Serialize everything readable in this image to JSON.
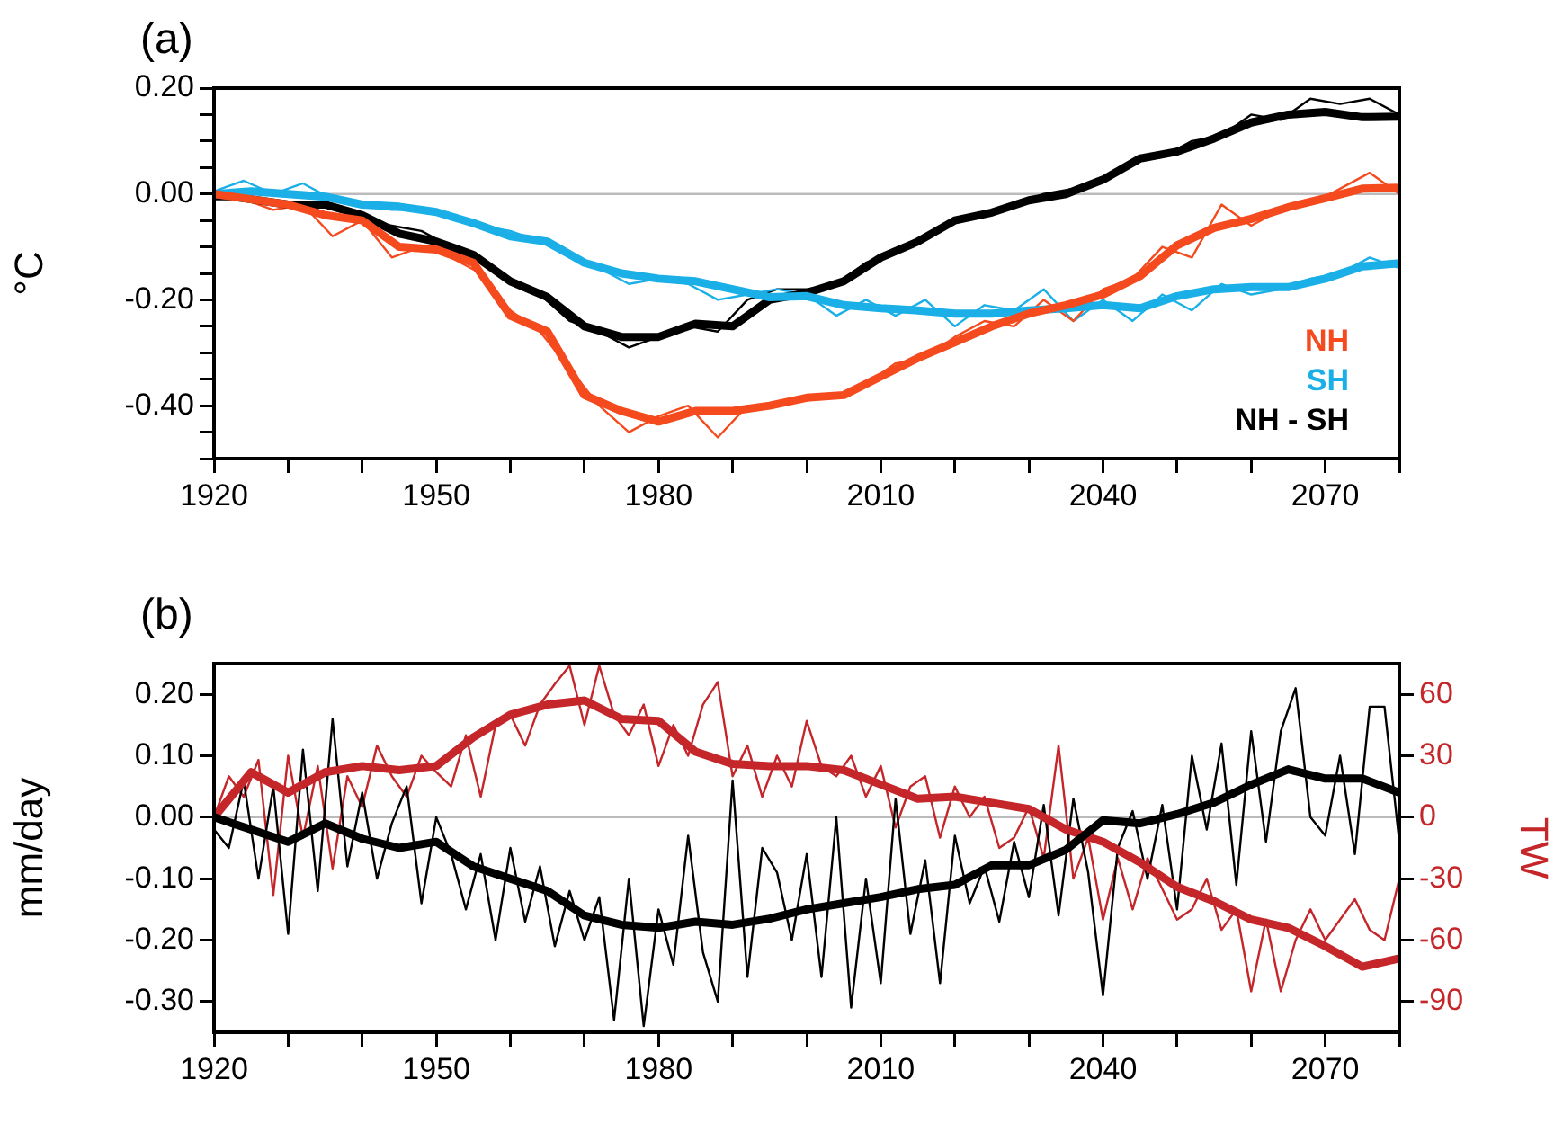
{
  "chart_data": [
    {
      "type": "line",
      "title": "(a)",
      "ylabel": "°C",
      "x": [
        1920,
        1925,
        1930,
        1935,
        1940,
        1945,
        1950,
        1955,
        1960,
        1965,
        1970,
        1975,
        1980,
        1985,
        1990,
        1995,
        2000,
        2005,
        2010,
        2015,
        2020,
        2025,
        2030,
        2035,
        2040,
        2045,
        2050,
        2055,
        2060,
        2065,
        2070,
        2075,
        2080
      ],
      "series": [
        {
          "name": "NH",
          "color": "#f44a1e",
          "values": [
            0,
            -0.01,
            -0.02,
            -0.04,
            -0.05,
            -0.1,
            -0.105,
            -0.13,
            -0.23,
            -0.26,
            -0.38,
            -0.41,
            -0.43,
            -0.41,
            -0.41,
            -0.4,
            -0.385,
            -0.38,
            -0.345,
            -0.31,
            -0.28,
            -0.25,
            -0.226,
            -0.21,
            -0.19,
            -0.155,
            -0.097,
            -0.064,
            -0.047,
            -0.025,
            -0.008,
            0.01,
            0.012
          ]
        },
        {
          "name": "SH",
          "color": "#1aafe6",
          "values": [
            0,
            0.005,
            0,
            -0.005,
            -0.02,
            -0.024,
            -0.034,
            -0.055,
            -0.08,
            -0.09,
            -0.13,
            -0.15,
            -0.16,
            -0.165,
            -0.18,
            -0.195,
            -0.193,
            -0.21,
            -0.216,
            -0.22,
            -0.226,
            -0.226,
            -0.22,
            -0.216,
            -0.21,
            -0.216,
            -0.193,
            -0.18,
            -0.176,
            -0.176,
            -0.16,
            -0.137,
            -0.131
          ]
        },
        {
          "name": "NH - SH",
          "color": "#000000",
          "values": [
            0,
            -0.01,
            -0.02,
            -0.02,
            -0.04,
            -0.075,
            -0.09,
            -0.115,
            -0.165,
            -0.195,
            -0.25,
            -0.27,
            -0.27,
            -0.245,
            -0.25,
            -0.2,
            -0.187,
            -0.165,
            -0.12,
            -0.09,
            -0.05,
            -0.035,
            -0.012,
            0,
            0.027,
            0.067,
            0.08,
            0.105,
            0.135,
            0.15,
            0.155,
            0.145,
            0.146
          ]
        },
        {
          "color": "#f44a1e",
          "x": [
            1920,
            1924,
            1928,
            1932,
            1936,
            1940,
            1944,
            1948,
            1952,
            1956,
            1960,
            1964,
            1968,
            1972,
            1976,
            1980,
            1984,
            1988,
            1992,
            1996,
            2000,
            2004,
            2008,
            2012,
            2016,
            2020,
            2024,
            2028,
            2032,
            2036,
            2040,
            2044,
            2048,
            2052,
            2056,
            2060,
            2064,
            2068,
            2072,
            2076,
            2080
          ],
          "values": [
            0,
            -0.01,
            -0.03,
            -0.02,
            -0.08,
            -0.05,
            -0.12,
            -0.1,
            -0.12,
            -0.15,
            -0.22,
            -0.26,
            -0.33,
            -0.4,
            -0.45,
            -0.42,
            -0.4,
            -0.46,
            -0.4,
            -0.4,
            -0.39,
            -0.38,
            -0.36,
            -0.32,
            -0.31,
            -0.27,
            -0.24,
            -0.25,
            -0.2,
            -0.24,
            -0.18,
            -0.16,
            -0.1,
            -0.12,
            -0.02,
            -0.06,
            -0.03,
            -0.02,
            0.01,
            0.04,
            0
          ]
        },
        {
          "color": "#1aafe6",
          "x": [
            1920,
            1924,
            1928,
            1932,
            1936,
            1940,
            1944,
            1948,
            1952,
            1956,
            1960,
            1964,
            1968,
            1972,
            1976,
            1980,
            1984,
            1988,
            1992,
            1996,
            2000,
            2004,
            2008,
            2012,
            2016,
            2020,
            2024,
            2028,
            2032,
            2036,
            2040,
            2044,
            2048,
            2052,
            2056,
            2060,
            2064,
            2068,
            2072,
            2076,
            2080
          ],
          "values": [
            0.005,
            0.025,
            0,
            0.02,
            -0.01,
            -0.02,
            -0.03,
            -0.03,
            -0.04,
            -0.06,
            -0.07,
            -0.09,
            -0.12,
            -0.14,
            -0.17,
            -0.16,
            -0.17,
            -0.2,
            -0.19,
            -0.18,
            -0.19,
            -0.23,
            -0.2,
            -0.23,
            -0.2,
            -0.25,
            -0.21,
            -0.22,
            -0.18,
            -0.24,
            -0.2,
            -0.24,
            -0.19,
            -0.22,
            -0.17,
            -0.19,
            -0.18,
            -0.16,
            -0.15,
            -0.12,
            -0.14
          ]
        },
        {
          "color": "#000000",
          "x": [
            1920,
            1924,
            1928,
            1932,
            1936,
            1940,
            1944,
            1948,
            1952,
            1956,
            1960,
            1964,
            1968,
            1972,
            1976,
            1980,
            1984,
            1988,
            1992,
            1996,
            2000,
            2004,
            2008,
            2012,
            2016,
            2020,
            2024,
            2028,
            2032,
            2036,
            2040,
            2044,
            2048,
            2052,
            2056,
            2060,
            2064,
            2068,
            2072,
            2076,
            2080
          ],
          "values": [
            -0.01,
            -0.01,
            -0.02,
            -0.02,
            -0.04,
            -0.05,
            -0.06,
            -0.07,
            -0.1,
            -0.12,
            -0.16,
            -0.19,
            -0.24,
            -0.26,
            -0.29,
            -0.27,
            -0.25,
            -0.26,
            -0.2,
            -0.18,
            -0.18,
            -0.17,
            -0.13,
            -0.11,
            -0.08,
            -0.05,
            -0.04,
            -0.02,
            0,
            0.01,
            0.03,
            0.06,
            0.07,
            0.1,
            0.11,
            0.15,
            0.14,
            0.18,
            0.17,
            0.18,
            0.15
          ]
        }
      ],
      "xlim": [
        1920,
        2080
      ],
      "xticks": [
        1920,
        {
          "value": 1930,
          "label": null
        },
        {
          "value": 1940,
          "label": null
        },
        1950,
        {
          "value": 1960,
          "label": null
        },
        {
          "value": 1970,
          "label": null
        },
        1980,
        {
          "value": 1990,
          "label": null
        },
        {
          "value": 2000,
          "label": null
        },
        2010,
        {
          "value": 2020,
          "label": null
        },
        {
          "value": 2030,
          "label": null
        },
        2040,
        {
          "value": 2050,
          "label": null
        },
        {
          "value": 2060,
          "label": null
        },
        2070,
        {
          "value": 2080,
          "label": null
        }
      ],
      "ylim": [
        -0.5,
        0.2
      ],
      "yticks": [
        {
          "value": -0.5,
          "label": null
        },
        {
          "value": -0.45,
          "label": null
        },
        {
          "value": -0.4,
          "label": "-0.40"
        },
        {
          "value": -0.35,
          "label": null
        },
        {
          "value": -0.3,
          "label": null
        },
        {
          "value": -0.25,
          "label": null
        },
        {
          "value": -0.2,
          "label": "-0.20"
        },
        {
          "value": -0.15,
          "label": null
        },
        {
          "value": -0.1,
          "label": null
        },
        {
          "value": -0.05,
          "label": null
        },
        {
          "value": 0,
          "label": "0.00"
        },
        {
          "value": 0.05,
          "label": null
        },
        {
          "value": 0.1,
          "label": null
        },
        {
          "value": 0.15,
          "label": null
        },
        {
          "value": 0.2,
          "label": "0.20"
        }
      ],
      "ref_lines": [
        {
          "axis": "y",
          "value": 0,
          "color": "#bbbbbb"
        }
      ],
      "grid": false,
      "legend": "bottom right"
    },
    {
      "type": "line",
      "title": "(b)",
      "ylabel": "mm/day",
      "y2label": "TW",
      "x": [
        1920,
        1925,
        1930,
        1935,
        1940,
        1945,
        1950,
        1955,
        1960,
        1965,
        1970,
        1975,
        1980,
        1985,
        1990,
        1995,
        2000,
        2005,
        2010,
        2015,
        2020,
        2025,
        2030,
        2035,
        2040,
        2045,
        2050,
        2055,
        2060,
        2065,
        2070,
        2075,
        2080
      ],
      "series": [
        {
          "color": "#000000",
          "x": [
            1920,
            1922,
            1924,
            1926,
            1928,
            1930,
            1932,
            1934,
            1936,
            1938,
            1940,
            1942,
            1944,
            1946,
            1948,
            1950,
            1952,
            1954,
            1956,
            1958,
            1960,
            1962,
            1964,
            1966,
            1968,
            1970,
            1972,
            1974,
            1976,
            1978,
            1980,
            1982,
            1984,
            1986,
            1988,
            1990,
            1992,
            1994,
            1996,
            1998,
            2000,
            2002,
            2004,
            2006,
            2008,
            2010,
            2012,
            2014,
            2016,
            2018,
            2020,
            2022,
            2024,
            2026,
            2028,
            2030,
            2032,
            2034,
            2036,
            2038,
            2040,
            2042,
            2044,
            2046,
            2048,
            2050,
            2052,
            2054,
            2056,
            2058,
            2060,
            2062,
            2064,
            2066,
            2068,
            2070,
            2072,
            2074,
            2076,
            2078,
            2080
          ],
          "values": [
            -0.02,
            -0.05,
            0.06,
            -0.1,
            0.05,
            -0.19,
            0.11,
            -0.12,
            0.16,
            -0.08,
            0.04,
            -0.1,
            -0.01,
            0.05,
            -0.14,
            0,
            -0.06,
            -0.15,
            -0.06,
            -0.2,
            -0.05,
            -0.17,
            -0.08,
            -0.21,
            -0.12,
            -0.2,
            -0.13,
            -0.33,
            -0.1,
            -0.34,
            -0.15,
            -0.24,
            -0.03,
            -0.22,
            -0.3,
            0.06,
            -0.26,
            -0.05,
            -0.09,
            -0.2,
            -0.06,
            -0.26,
            0,
            -0.31,
            -0.1,
            -0.27,
            0.03,
            -0.19,
            -0.07,
            -0.27,
            -0.03,
            -0.14,
            -0.08,
            -0.17,
            -0.04,
            -0.13,
            0.02,
            -0.16,
            0.03,
            -0.09,
            -0.29,
            -0.05,
            0.01,
            -0.1,
            0.02,
            -0.15,
            0.1,
            -0.02,
            0.12,
            -0.11,
            0.14,
            -0.04,
            0.14,
            0.21,
            0,
            -0.03,
            0.1,
            -0.06,
            0.18,
            0.18,
            -0.04
          ]
        },
        {
          "color": "#c4262a",
          "axis": "y2",
          "x": [
            1920,
            1922,
            1924,
            1926,
            1928,
            1930,
            1932,
            1934,
            1936,
            1938,
            1940,
            1942,
            1944,
            1946,
            1948,
            1950,
            1952,
            1954,
            1956,
            1958,
            1960,
            1962,
            1964,
            1966,
            1968,
            1970,
            1972,
            1974,
            1976,
            1978,
            1980,
            1982,
            1984,
            1986,
            1988,
            1990,
            1992,
            1994,
            1996,
            1998,
            2000,
            2002,
            2004,
            2006,
            2008,
            2010,
            2012,
            2014,
            2016,
            2018,
            2020,
            2022,
            2024,
            2026,
            2028,
            2030,
            2032,
            2034,
            2036,
            2038,
            2040,
            2042,
            2044,
            2046,
            2048,
            2050,
            2052,
            2054,
            2056,
            2058,
            2060,
            2062,
            2064,
            2066,
            2068,
            2070,
            2072,
            2074,
            2076,
            2078,
            2080
          ],
          "values": [
            0,
            20,
            10,
            28,
            -38,
            30,
            -10,
            25,
            -25,
            20,
            5,
            35,
            20,
            10,
            30,
            22,
            15,
            40,
            10,
            45,
            50,
            35,
            55,
            65,
            74,
            45,
            74,
            50,
            40,
            55,
            25,
            45,
            30,
            55,
            66,
            20,
            35,
            10,
            30,
            15,
            47,
            25,
            20,
            30,
            10,
            25,
            -5,
            15,
            20,
            -10,
            15,
            0,
            10,
            -15,
            -10,
            5,
            -20,
            35,
            -30,
            -10,
            -50,
            -20,
            -45,
            -20,
            -35,
            -50,
            -45,
            -30,
            -55,
            -45,
            -85,
            -50,
            -85,
            -60,
            -45,
            -60,
            -50,
            -40,
            -55,
            -60,
            -30
          ]
        },
        {
          "color": "#000000",
          "values": [
            0,
            -0.02,
            -0.04,
            -0.01,
            -0.035,
            -0.05,
            -0.04,
            -0.08,
            -0.1,
            -0.12,
            -0.16,
            -0.175,
            -0.18,
            -0.17,
            -0.175,
            -0.165,
            -0.15,
            -0.14,
            -0.13,
            -0.117,
            -0.11,
            -0.078,
            -0.078,
            -0.053,
            -0.005,
            -0.01,
            0.005,
            0.024,
            0.053,
            0.078,
            0.063,
            0.063,
            0.04
          ]
        },
        {
          "color": "#c4262a",
          "axis": "y2",
          "values": [
            0,
            22,
            12,
            22,
            25,
            23,
            25,
            39,
            50,
            55,
            57,
            48,
            47,
            32,
            26,
            25,
            25,
            23,
            16,
            9,
            10,
            7,
            4,
            -6,
            -12,
            -22,
            -34,
            -41,
            -50,
            -54,
            -63,
            -73,
            -69
          ]
        }
      ],
      "xlim": [
        1920,
        2080
      ],
      "xticks": [
        1920,
        {
          "value": 1930,
          "label": null
        },
        {
          "value": 1940,
          "label": null
        },
        1950,
        {
          "value": 1960,
          "label": null
        },
        {
          "value": 1970,
          "label": null
        },
        1980,
        {
          "value": 1990,
          "label": null
        },
        {
          "value": 2000,
          "label": null
        },
        2010,
        {
          "value": 2020,
          "label": null
        },
        {
          "value": 2030,
          "label": null
        },
        2040,
        {
          "value": 2050,
          "label": null
        },
        {
          "value": 2060,
          "label": null
        },
        2070,
        {
          "value": 2080,
          "label": null
        }
      ],
      "ylim": [
        -0.35,
        0.25
      ],
      "yticks": [
        {
          "value": -0.3,
          "label": "-0.30"
        },
        {
          "value": -0.2,
          "label": "-0.20"
        },
        {
          "value": -0.1,
          "label": "-0.10"
        },
        {
          "value": 0,
          "label": "0.00"
        },
        {
          "value": 0.1,
          "label": "0.10"
        },
        {
          "value": 0.2,
          "label": "0.20"
        }
      ],
      "y2lim": [
        -105,
        75
      ],
      "y2ticks": [
        -90,
        -60,
        -30,
        0,
        30,
        60
      ],
      "ref_lines": [
        {
          "axis": "y",
          "value": 0,
          "color": "#bbbbbb"
        }
      ],
      "grid": false
    }
  ]
}
